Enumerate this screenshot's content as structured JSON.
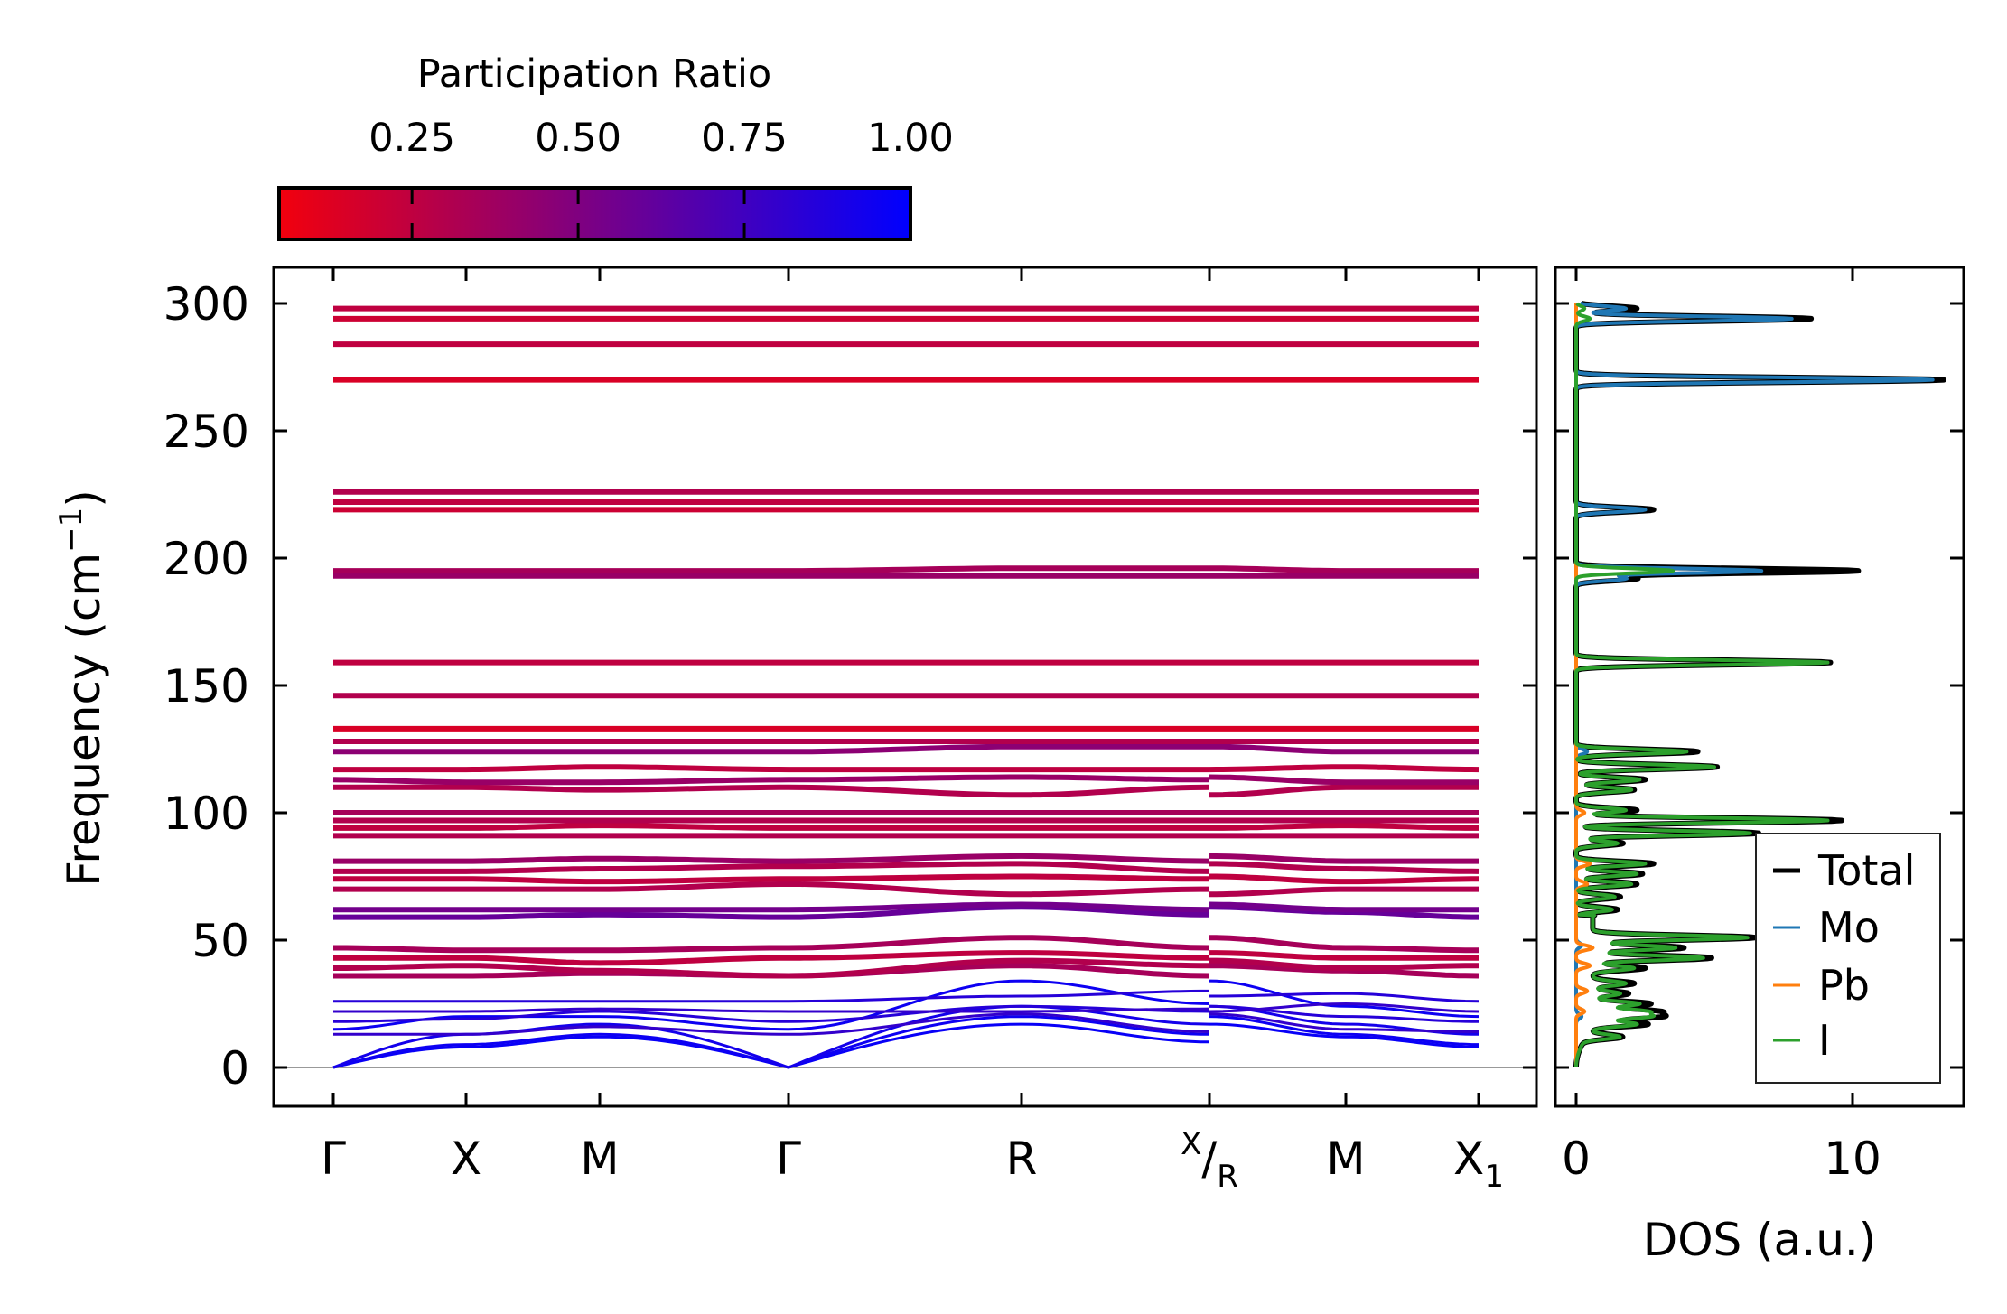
{
  "chart_data": [
    {
      "type": "line",
      "title": "",
      "ylabel": {
        "main": "Frequency (cm",
        "sup": "−1",
        "close": ")"
      },
      "ylim": [
        -15,
        315
      ],
      "yticks": [
        "0",
        "50",
        "100",
        "150",
        "200",
        "250",
        "300"
      ],
      "ytick_values": [
        0,
        50,
        100,
        150,
        200,
        250,
        300
      ],
      "xticks": [
        {
          "main": "Γ"
        },
        {
          "main": "X"
        },
        {
          "main": "M"
        },
        {
          "main": "Γ"
        },
        {
          "main": "R"
        },
        {
          "sup": "X",
          "main": "/",
          "sub": "R"
        },
        {
          "main": "M"
        },
        {
          "main": "X",
          "sub": "1"
        }
      ],
      "path_points": [
        "Γ",
        "X",
        "M",
        "Γ",
        "R",
        "X",
        "R",
        "M",
        "X1"
      ],
      "colorbar": {
        "label": "Participation Ratio",
        "ticks": [
          "0.25",
          "0.50",
          "0.75",
          "1.00"
        ],
        "tick_values": [
          0.25,
          0.5,
          0.75,
          1.0
        ],
        "range": [
          0.05,
          1.0
        ],
        "low_color": "#ff0000",
        "high_color": "#0000ff"
      },
      "bands": [
        {
          "f": [
            0,
            8,
            12,
            0,
            17,
            10,
            17,
            12,
            8
          ],
          "pr": 0.97
        },
        {
          "f": [
            0,
            9,
            13,
            0,
            20,
            13,
            20,
            13,
            9
          ],
          "pr": 0.95
        },
        {
          "f": [
            0,
            13,
            17,
            0,
            24,
            17,
            24,
            17,
            13
          ],
          "pr": 0.92
        },
        {
          "f": [
            13,
            13,
            16,
            13,
            21,
            14,
            21,
            15,
            14
          ],
          "pr": 0.8
        },
        {
          "f": [
            15,
            20,
            20,
            15,
            34,
            25,
            34,
            24,
            20
          ],
          "pr": 0.95
        },
        {
          "f": [
            18,
            19,
            22,
            18,
            24,
            22,
            24,
            20,
            18
          ],
          "pr": 0.85
        },
        {
          "f": [
            22,
            22,
            23,
            22,
            22,
            23,
            22,
            25,
            22
          ],
          "pr": 0.8
        },
        {
          "f": [
            26,
            26,
            26,
            26,
            28,
            30,
            28,
            29,
            26
          ],
          "pr": 0.85
        },
        {
          "f": [
            36,
            36,
            37,
            36,
            40,
            36,
            40,
            38,
            36
          ],
          "pr": 0.35
        },
        {
          "f": [
            39,
            40,
            38,
            36,
            42,
            40,
            42,
            39,
            40
          ],
          "pr": 0.3
        },
        {
          "f": [
            43,
            43,
            41,
            43,
            45,
            43,
            45,
            43,
            43
          ],
          "pr": 0.25
        },
        {
          "f": [
            47,
            46,
            46,
            47,
            51,
            47,
            51,
            47,
            46
          ],
          "pr": 0.35
        },
        {
          "f": [
            59,
            59,
            60,
            59,
            63,
            60,
            63,
            61,
            59
          ],
          "pr": 0.6
        },
        {
          "f": [
            62,
            62,
            62,
            62,
            64,
            62,
            64,
            62,
            62
          ],
          "pr": 0.55
        },
        {
          "f": [
            70,
            70,
            70,
            72,
            68,
            70,
            68,
            70,
            70
          ],
          "pr": 0.3
        },
        {
          "f": [
            74,
            74,
            73,
            74,
            75,
            74,
            75,
            73,
            74
          ],
          "pr": 0.25
        },
        {
          "f": [
            77,
            77,
            78,
            79,
            80,
            77,
            80,
            78,
            77
          ],
          "pr": 0.3
        },
        {
          "f": [
            81,
            81,
            82,
            81,
            83,
            81,
            83,
            81,
            81
          ],
          "pr": 0.4
        },
        {
          "f": [
            91,
            91,
            91,
            91,
            91,
            91,
            91,
            91,
            91
          ],
          "pr": 0.3
        },
        {
          "f": [
            94,
            94,
            95,
            94,
            94,
            94,
            94,
            95,
            94
          ],
          "pr": 0.25
        },
        {
          "f": [
            97,
            97,
            97,
            97,
            97,
            97,
            97,
            97,
            97
          ],
          "pr": 0.3
        },
        {
          "f": [
            100,
            100,
            100,
            100,
            100,
            100,
            100,
            100,
            100
          ],
          "pr": 0.35
        },
        {
          "f": [
            110,
            110,
            109,
            110,
            107,
            110,
            107,
            110,
            110
          ],
          "pr": 0.3
        },
        {
          "f": [
            113,
            112,
            112,
            113,
            114,
            113,
            114,
            112,
            112
          ],
          "pr": 0.4
        },
        {
          "f": [
            117,
            117,
            118,
            117,
            117,
            117,
            117,
            118,
            117
          ],
          "pr": 0.25
        },
        {
          "f": [
            124,
            124,
            124,
            124,
            126,
            126,
            126,
            124,
            124
          ],
          "pr": 0.45
        },
        {
          "f": [
            128,
            128,
            128,
            128,
            128,
            128,
            128,
            128,
            128
          ],
          "pr": 0.3
        },
        {
          "f": [
            133,
            133,
            133,
            133,
            133,
            133,
            133,
            133,
            133
          ],
          "pr": 0.15
        },
        {
          "f": [
            146,
            146,
            146,
            146,
            146,
            146,
            146,
            146,
            146
          ],
          "pr": 0.3
        },
        {
          "f": [
            159,
            159,
            159,
            159,
            159,
            159,
            159,
            159,
            159
          ],
          "pr": 0.25
        },
        {
          "f": [
            193,
            193,
            193,
            193,
            193,
            193,
            193,
            193,
            193
          ],
          "pr": 0.4
        },
        {
          "f": [
            195,
            195,
            195,
            195,
            196,
            196,
            196,
            195,
            195
          ],
          "pr": 0.35
        },
        {
          "f": [
            219,
            219,
            219,
            219,
            219,
            219,
            219,
            219,
            219
          ],
          "pr": 0.2
        },
        {
          "f": [
            222,
            222,
            222,
            222,
            222,
            222,
            222,
            222,
            222
          ],
          "pr": 0.25
        },
        {
          "f": [
            226,
            226,
            226,
            226,
            226,
            226,
            226,
            226,
            226
          ],
          "pr": 0.3
        },
        {
          "f": [
            270,
            270,
            270,
            270,
            270,
            270,
            270,
            270,
            270
          ],
          "pr": 0.15
        },
        {
          "f": [
            284,
            284,
            284,
            284,
            284,
            284,
            284,
            284,
            284
          ],
          "pr": 0.25
        },
        {
          "f": [
            294,
            294,
            294,
            294,
            294,
            294,
            294,
            294,
            294
          ],
          "pr": 0.2
        },
        {
          "f": [
            298,
            298,
            298,
            298,
            298,
            298,
            298,
            298,
            298
          ],
          "pr": 0.25
        }
      ]
    },
    {
      "type": "line",
      "xlabel": "DOS (a.u.)",
      "xlim": [
        -0.6,
        14.1
      ],
      "xticks": [
        "0",
        "10"
      ],
      "xtick_values": [
        0,
        10
      ],
      "ylim": [
        -15,
        315
      ],
      "legend_position": "lower-right",
      "series": [
        {
          "name": "Total",
          "color": "#000000",
          "peaks": [
            [
              298,
              2.2
            ],
            [
              294,
              8.5
            ],
            [
              270,
              13.3
            ],
            [
              219,
              2.8
            ],
            [
              195,
              10.2
            ],
            [
              192,
              2.2
            ],
            [
              159,
              9.2
            ],
            [
              124,
              4.4
            ],
            [
              118,
              5.1
            ],
            [
              113,
              2.5
            ],
            [
              109,
              2.1
            ],
            [
              101,
              2.2
            ],
            [
              97,
              9.6
            ],
            [
              92,
              6.6
            ],
            [
              88,
              1.7
            ],
            [
              80,
              2.8
            ],
            [
              76,
              2.4
            ],
            [
              72,
              2.2
            ],
            [
              67,
              1.6
            ],
            [
              62,
              1.5
            ],
            [
              51,
              5.9
            ],
            [
              47,
              3.3
            ],
            [
              43,
              4.3
            ],
            [
              39,
              1.9
            ],
            [
              33,
              1.5
            ],
            [
              29,
              1.3
            ],
            [
              25,
              2.1
            ],
            [
              22,
              2.3
            ],
            [
              20,
              2.4
            ],
            [
              17,
              2.0
            ],
            [
              12,
              1.3
            ]
          ]
        },
        {
          "name": "Mo",
          "color": "#1f77b4",
          "peaks": [
            [
              298,
              1.8
            ],
            [
              294,
              7.8
            ],
            [
              270,
              12.9
            ],
            [
              219,
              2.5
            ],
            [
              195,
              6.7
            ],
            [
              192,
              1.8
            ],
            [
              124,
              0.4
            ],
            [
              48,
              0.2
            ],
            [
              20,
              0.2
            ]
          ]
        },
        {
          "name": "Pb",
          "color": "#ff7f0e",
          "peaks": [
            [
              100,
              0.3
            ],
            [
              80,
              0.5
            ],
            [
              72,
              0.4
            ],
            [
              47,
              0.6
            ],
            [
              40,
              0.5
            ],
            [
              30,
              0.4
            ],
            [
              22,
              0.3
            ]
          ]
        },
        {
          "name": "I",
          "color": "#2ca02c",
          "peaks": [
            [
              298,
              0.3
            ],
            [
              294,
              0.5
            ],
            [
              195,
              3.5
            ],
            [
              159,
              9.1
            ],
            [
              124,
              4.0
            ],
            [
              118,
              5.0
            ],
            [
              113,
              2.3
            ],
            [
              109,
              2.0
            ],
            [
              101,
              1.8
            ],
            [
              97,
              9.1
            ],
            [
              92,
              6.3
            ],
            [
              88,
              1.5
            ],
            [
              80,
              2.5
            ],
            [
              76,
              2.2
            ],
            [
              72,
              2.0
            ],
            [
              67,
              1.4
            ],
            [
              62,
              1.3
            ],
            [
              51,
              5.6
            ],
            [
              47,
              3.0
            ],
            [
              43,
              4.0
            ],
            [
              39,
              1.5
            ],
            [
              33,
              1.2
            ],
            [
              29,
              1.0
            ],
            [
              25,
              1.7
            ],
            [
              22,
              1.9
            ],
            [
              20,
              2.0
            ],
            [
              17,
              1.6
            ],
            [
              12,
              1.2
            ]
          ]
        }
      ]
    }
  ]
}
